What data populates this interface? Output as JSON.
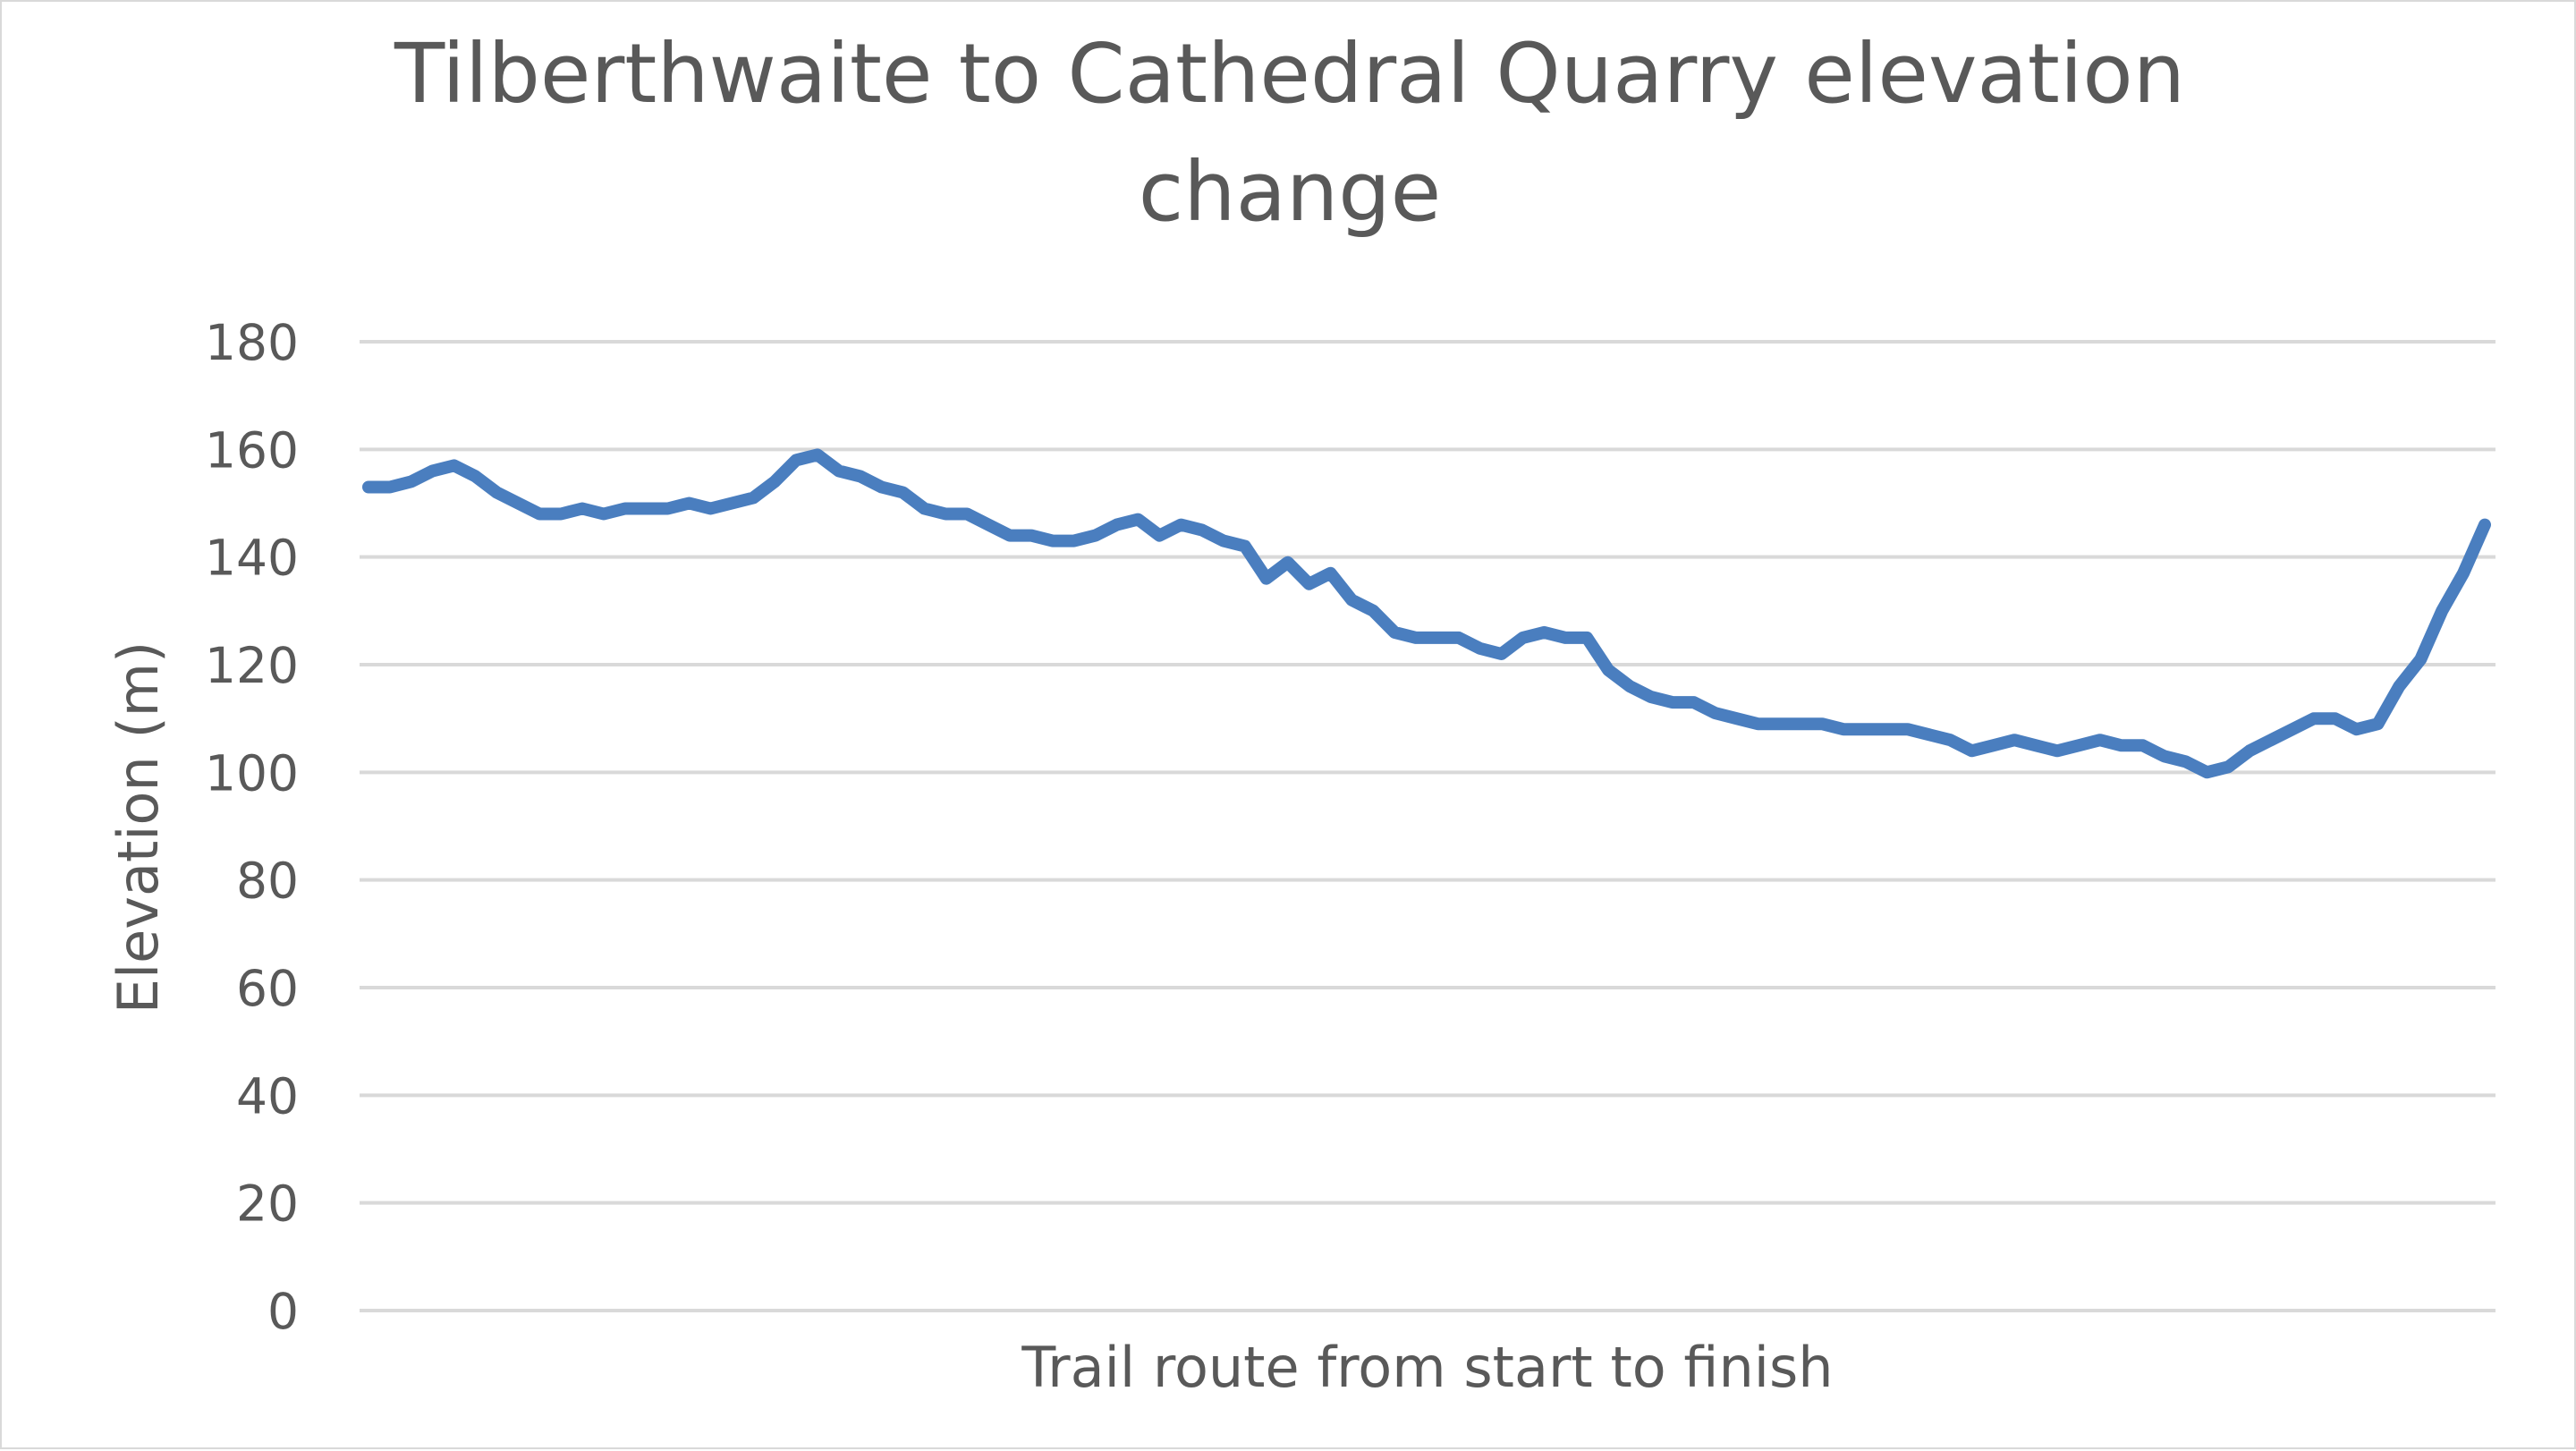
{
  "chart_data": {
    "type": "line",
    "title_lines": [
      "Tilberthwaite to Cathedral Quarry elevation",
      "change"
    ],
    "xlabel": "Trail route from start to finish",
    "ylabel": "Elevation (m)",
    "ylim": [
      0,
      180
    ],
    "yticks": [
      "0",
      "20",
      "40",
      "60",
      "80",
      "100",
      "120",
      "140",
      "160",
      "180"
    ],
    "grid": true,
    "legend": "none",
    "series_color": "#4a7ebf",
    "gridline_color": "#d9d9d9",
    "text_color": "#595959",
    "series": [
      {
        "values": [
          153,
          153,
          154,
          156,
          157,
          155,
          152,
          150,
          148,
          148,
          149,
          148,
          149,
          149,
          149,
          150,
          149,
          150,
          151,
          154,
          158,
          159,
          156,
          155,
          153,
          152,
          149,
          148,
          148,
          146,
          144,
          144,
          143,
          143,
          144,
          146,
          147,
          144,
          146,
          145,
          143,
          142,
          136,
          139,
          135,
          137,
          132,
          130,
          126,
          125,
          125,
          125,
          123,
          122,
          125,
          126,
          125,
          125,
          119,
          116,
          114,
          113,
          113,
          111,
          110,
          109,
          109,
          109,
          109,
          108,
          108,
          108,
          108,
          107,
          106,
          104,
          105,
          106,
          105,
          104,
          105,
          106,
          105,
          105,
          103,
          102,
          100,
          101,
          104,
          106,
          108,
          110,
          110,
          108,
          109,
          116,
          121,
          130,
          137,
          146
        ]
      }
    ]
  }
}
